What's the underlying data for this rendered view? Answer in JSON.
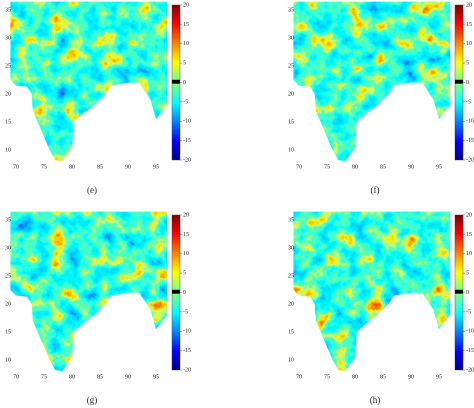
{
  "panels": [
    {
      "caption": "(e)",
      "x_ticks": [
        "70",
        "75",
        "80",
        "85",
        "90",
        "95"
      ],
      "y_ticks": [
        "35",
        "30",
        "25",
        "20",
        "15",
        "10"
      ],
      "colorbar_ticks": [
        "20",
        "15",
        "10",
        "5",
        "0",
        "-5",
        "-10",
        "-15",
        "-20"
      ]
    },
    {
      "caption": "(f)",
      "x_ticks": [
        "70",
        "75",
        "80",
        "85",
        "90",
        "95"
      ],
      "y_ticks": [
        "35",
        "30",
        "25",
        "20",
        "15",
        "10"
      ],
      "colorbar_ticks": [
        "20",
        "15",
        "10",
        "5",
        "0",
        "-5",
        "-10",
        "-15",
        "-20"
      ]
    },
    {
      "caption": "(g)",
      "x_ticks": [
        "70",
        "75",
        "80",
        "85",
        "90",
        "95"
      ],
      "y_ticks": [
        "35",
        "30",
        "25",
        "20",
        "15",
        "10"
      ],
      "colorbar_ticks": [
        "20",
        "15",
        "10",
        "5",
        "0",
        "-5",
        "-10",
        "-15",
        "-20"
      ]
    },
    {
      "caption": "(h)",
      "x_ticks": [
        "70",
        "75",
        "80",
        "85",
        "90",
        "95"
      ],
      "y_ticks": [
        "35",
        "30",
        "25",
        "20",
        "15",
        "10"
      ],
      "colorbar_ticks": [
        "20",
        "15",
        "10",
        "5",
        "0",
        "-5",
        "-10",
        "-15",
        "-20"
      ]
    }
  ]
}
